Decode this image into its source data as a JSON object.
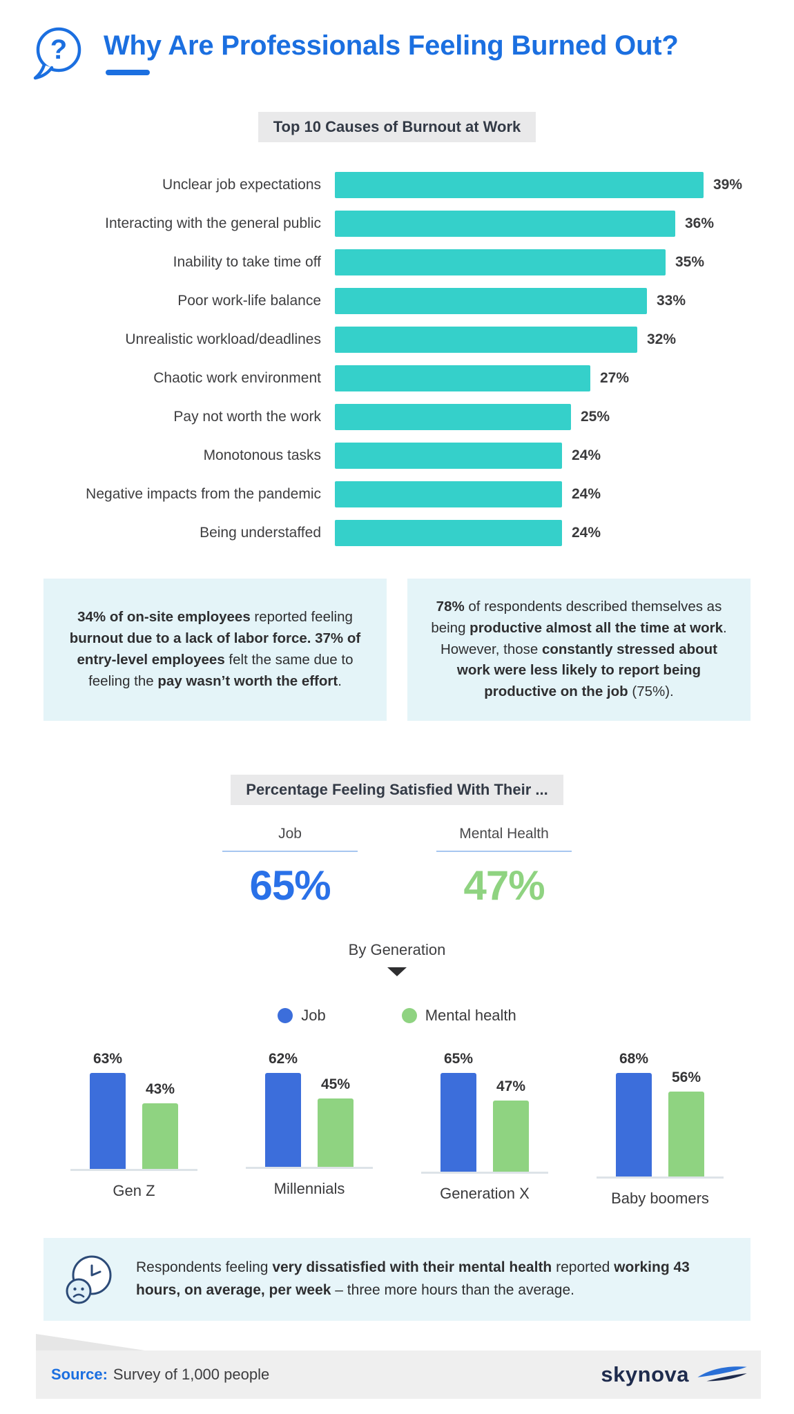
{
  "header": {
    "title": "Why Are Professionals Feeling Burned Out?",
    "icon_glyph": "?"
  },
  "accent": {
    "blue": "#1b6fe0",
    "teal": "#35d0ca",
    "green": "#8fd381",
    "navy": "#1e2b4d",
    "callout_bg": "#e4f4f8",
    "chip_bg": "#e9e9ea"
  },
  "section_burnout": {
    "chip": "Top 10 Causes of Burnout at Work"
  },
  "chart_data": [
    {
      "type": "bar",
      "orientation": "horizontal",
      "title": "Top 10 Causes of Burnout at Work",
      "categories": [
        "Unclear job expectations",
        "Interacting with the general public",
        "Inability to take time off",
        "Poor work-life balance",
        "Unrealistic workload/deadlines",
        "Chaotic work environment",
        "Pay not worth the work",
        "Monotonous tasks",
        "Negative impacts from the pandemic",
        "Being understaffed"
      ],
      "values": [
        39,
        36,
        35,
        33,
        32,
        27,
        25,
        24,
        24,
        24
      ],
      "unit": "%",
      "bar_color": "#35d0ca",
      "xlim": [
        0,
        40
      ],
      "value_labels": true,
      "grid": false
    },
    {
      "type": "bar",
      "title": "Percentage Feeling Satisfied With Their ...",
      "categories": [
        "Job",
        "Mental Health"
      ],
      "values": [
        65,
        47
      ],
      "unit": "%",
      "colors": [
        "#2a71e8",
        "#8fd381"
      ]
    },
    {
      "type": "bar",
      "orientation": "vertical",
      "title": "Percentage Feeling Satisfied - By Generation",
      "categories": [
        "Gen Z",
        "Millennials",
        "Generation X",
        "Baby boomers"
      ],
      "series": [
        {
          "name": "Job",
          "color": "#3c6edb",
          "values": [
            63,
            62,
            65,
            68
          ]
        },
        {
          "name": "Mental health",
          "color": "#8fd381",
          "values": [
            43,
            45,
            47,
            56
          ]
        }
      ],
      "unit": "%",
      "ylim": [
        0,
        70
      ],
      "legend_position": "top",
      "grid": false
    }
  ],
  "callouts": [
    {
      "segments": [
        {
          "bold": true,
          "text": "34% of on-site employees"
        },
        {
          "bold": false,
          "text": " reported feeling "
        },
        {
          "bold": true,
          "text": "burnout due to a lack of labor force. 37% of entry-level employees"
        },
        {
          "bold": false,
          "text": " felt the same due to feeling the "
        },
        {
          "bold": true,
          "text": "pay wasn’t worth the effort"
        },
        {
          "bold": false,
          "text": "."
        }
      ]
    },
    {
      "segments": [
        {
          "bold": true,
          "text": "78%"
        },
        {
          "bold": false,
          "text": " of respondents described themselves as being "
        },
        {
          "bold": true,
          "text": "productive almost all the time at work"
        },
        {
          "bold": false,
          "text": ". However, those "
        },
        {
          "bold": true,
          "text": "constantly stressed about work were less likely to report being productive on the job"
        },
        {
          "bold": false,
          "text": " (75%)."
        }
      ]
    }
  ],
  "section_satisfaction": {
    "chip": "Percentage Feeling Satisfied With Their ...",
    "stats": [
      {
        "label": "Job",
        "value": "65%",
        "color": "#2a71e8"
      },
      {
        "label": "Mental Health",
        "value": "47%",
        "color": "#8fd381"
      }
    ],
    "by_generation": "By Generation"
  },
  "note": {
    "segments": [
      {
        "bold": false,
        "text": "Respondents feeling "
      },
      {
        "bold": true,
        "text": "very dissatisfied with their mental health"
      },
      {
        "bold": false,
        "text": " reported "
      },
      {
        "bold": true,
        "text": "working 43 hours, on average, per week"
      },
      {
        "bold": false,
        "text": " – three more hours than the average."
      }
    ]
  },
  "footer": {
    "source_label": "Source:",
    "source_text": "Survey of 1,000 people",
    "brand": "skynova"
  }
}
